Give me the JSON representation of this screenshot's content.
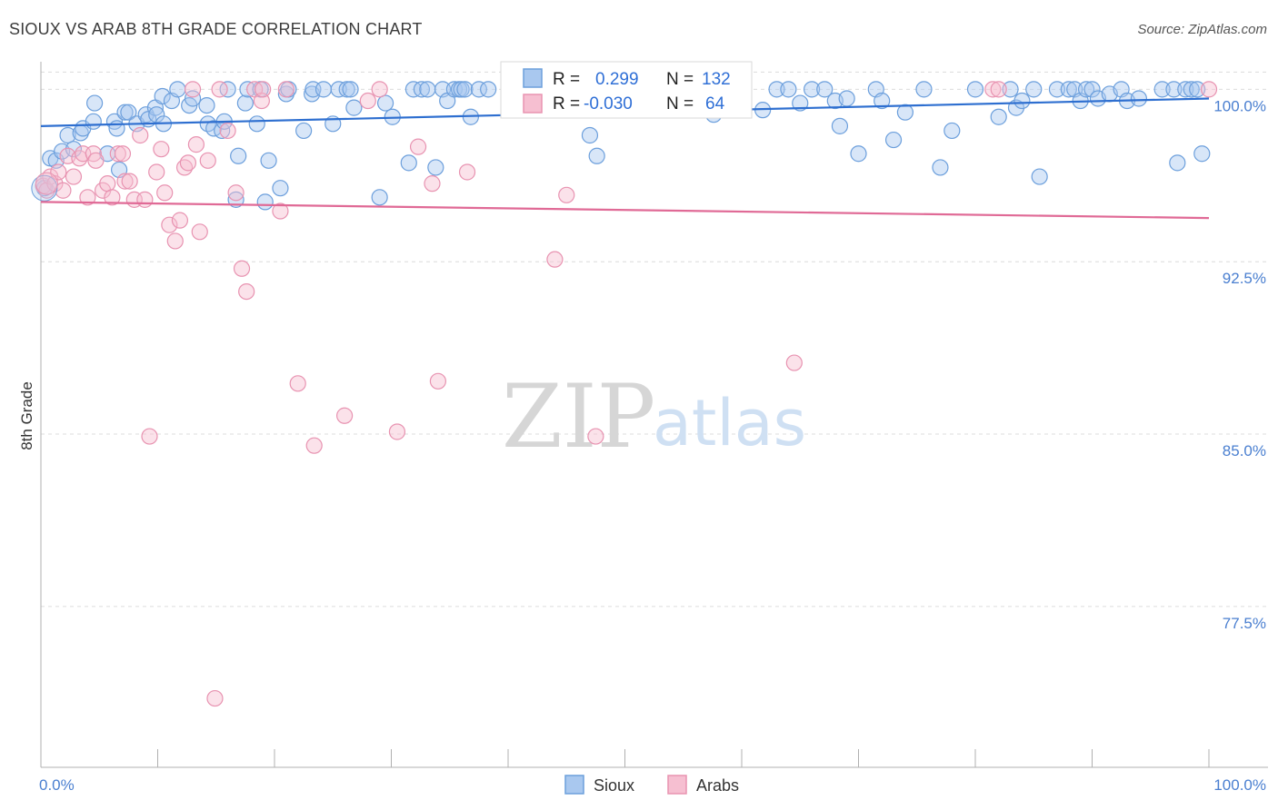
{
  "title": "SIOUX VS ARAB 8TH GRADE CORRELATION CHART",
  "source": "Source: ZipAtlas.com",
  "watermark": {
    "left": "ZIP",
    "right": "atlas"
  },
  "colors": {
    "sioux_fill": "#a9c8ef",
    "sioux_stroke": "#6c9fdc",
    "sioux_line": "#2e6fd0",
    "arab_fill": "#f6bfd1",
    "arab_stroke": "#e893b1",
    "arab_line": "#e06a96",
    "grid": "#dcdcdc",
    "axis": "#b0b0b0",
    "tick_label": "#4a7fd0"
  },
  "legend": {
    "rows": [
      {
        "r_label": "R =",
        "r_value": "0.299",
        "n_label": "N =",
        "n_value": "132",
        "series": "sioux"
      },
      {
        "r_label": "R =",
        "r_value": "-0.030",
        "n_label": "N =",
        "n_value": "64",
        "series": "arab"
      }
    ]
  },
  "bottom_legend": [
    {
      "label": "Sioux",
      "series": "sioux"
    },
    {
      "label": "Arabs",
      "series": "arab"
    }
  ],
  "chart_data": {
    "type": "scatter",
    "title": "SIOUX VS ARAB 8TH GRADE CORRELATION CHART",
    "xlabel": "",
    "ylabel": "8th Grade",
    "xlim": [
      0,
      100
    ],
    "ylim": [
      70.5,
      101.2
    ],
    "x_tick_labels": [
      {
        "value": 0,
        "label": "0.0%"
      },
      {
        "value": 100,
        "label": "100.0%"
      }
    ],
    "y_ticks": [
      {
        "value": 100,
        "label": "100.0%"
      },
      {
        "value": 92.5,
        "label": "92.5%"
      },
      {
        "value": 85,
        "label": "85.0%"
      },
      {
        "value": 77.5,
        "label": "77.5%"
      }
    ],
    "x_minor_ticks": [
      0,
      10,
      20,
      30,
      40,
      50,
      60,
      70,
      80,
      90,
      100
    ],
    "grid": true,
    "legend_position": "top-center",
    "series": [
      {
        "name": "Sioux",
        "key": "sioux",
        "trend": {
          "x": [
            0,
            100
          ],
          "y": [
            98.4,
            99.6
          ]
        },
        "points": [
          [
            0.3,
            95.7
          ],
          [
            0.8,
            97.0
          ],
          [
            1.3,
            96.9
          ],
          [
            1.8,
            97.3
          ],
          [
            2.3,
            98.0
          ],
          [
            2.8,
            97.4
          ],
          [
            3.4,
            98.1
          ],
          [
            3.6,
            98.3
          ],
          [
            4.5,
            98.6
          ],
          [
            4.6,
            99.4
          ],
          [
            5.7,
            97.2
          ],
          [
            6.3,
            98.6
          ],
          [
            6.7,
            96.5
          ],
          [
            6.5,
            98.3
          ],
          [
            7.2,
            99.0
          ],
          [
            7.5,
            99.0
          ],
          [
            8.2,
            98.5
          ],
          [
            9.0,
            98.9
          ],
          [
            9.2,
            98.7
          ],
          [
            9.8,
            99.2
          ],
          [
            9.9,
            98.9
          ],
          [
            10.4,
            99.7
          ],
          [
            10.5,
            98.5
          ],
          [
            11.2,
            99.5
          ],
          [
            11.7,
            100.0
          ],
          [
            12.7,
            99.3
          ],
          [
            13.0,
            99.6
          ],
          [
            14.2,
            99.3
          ],
          [
            14.3,
            98.5
          ],
          [
            14.8,
            98.3
          ],
          [
            15.5,
            98.2
          ],
          [
            15.7,
            98.6
          ],
          [
            16.0,
            100.0
          ],
          [
            16.7,
            95.2
          ],
          [
            16.9,
            97.1
          ],
          [
            17.5,
            99.4
          ],
          [
            17.7,
            100.0
          ],
          [
            18.5,
            98.5
          ],
          [
            18.8,
            100.0
          ],
          [
            19.2,
            95.1
          ],
          [
            19.5,
            96.9
          ],
          [
            20.5,
            95.7
          ],
          [
            21.0,
            99.8
          ],
          [
            21.2,
            100.0
          ],
          [
            22.5,
            98.2
          ],
          [
            23.2,
            99.8
          ],
          [
            23.3,
            100.0
          ],
          [
            24.2,
            100.0
          ],
          [
            25.0,
            98.5
          ],
          [
            25.5,
            100.0
          ],
          [
            26.2,
            100.0
          ],
          [
            26.5,
            100.0
          ],
          [
            26.8,
            99.2
          ],
          [
            29.0,
            95.3
          ],
          [
            29.5,
            99.4
          ],
          [
            30.1,
            98.8
          ],
          [
            31.5,
            96.8
          ],
          [
            31.9,
            100.0
          ],
          [
            32.6,
            100.0
          ],
          [
            33.1,
            100.0
          ],
          [
            33.8,
            96.6
          ],
          [
            34.4,
            100.0
          ],
          [
            34.8,
            99.5
          ],
          [
            35.4,
            100.0
          ],
          [
            35.8,
            100.0
          ],
          [
            36.0,
            100.0
          ],
          [
            36.3,
            100.0
          ],
          [
            36.8,
            98.8
          ],
          [
            37.5,
            100.0
          ],
          [
            38.3,
            100.0
          ],
          [
            40.2,
            100.0
          ],
          [
            41.0,
            99.8
          ],
          [
            41.8,
            100.0
          ],
          [
            42.6,
            100.0
          ],
          [
            43.5,
            100.0
          ],
          [
            44.0,
            99.9
          ],
          [
            45.4,
            100.0
          ],
          [
            46.0,
            99.6
          ],
          [
            46.6,
            99.3
          ],
          [
            47.0,
            98.0
          ],
          [
            47.6,
            97.1
          ],
          [
            48.5,
            100.0
          ],
          [
            50.4,
            99.9
          ],
          [
            51.5,
            100.0
          ],
          [
            52.8,
            100.0
          ],
          [
            54.0,
            100.0
          ],
          [
            55.0,
            100.0
          ],
          [
            56.0,
            100.0
          ],
          [
            57.6,
            98.9
          ],
          [
            58.0,
            100.0
          ],
          [
            59.0,
            100.0
          ],
          [
            59.3,
            100.0
          ],
          [
            61.8,
            99.1
          ],
          [
            63.0,
            100.0
          ],
          [
            64.0,
            100.0
          ],
          [
            65.0,
            99.4
          ],
          [
            66.0,
            100.0
          ],
          [
            67.1,
            100.0
          ],
          [
            68.0,
            99.5
          ],
          [
            68.4,
            98.4
          ],
          [
            69.0,
            99.6
          ],
          [
            70.0,
            97.2
          ],
          [
            71.5,
            100.0
          ],
          [
            72.0,
            99.5
          ],
          [
            73.0,
            97.8
          ],
          [
            74.0,
            99.0
          ],
          [
            75.6,
            100.0
          ],
          [
            77.0,
            96.6
          ],
          [
            78.0,
            98.2
          ],
          [
            80.0,
            100.0
          ],
          [
            82.0,
            98.8
          ],
          [
            83.0,
            100.0
          ],
          [
            83.5,
            99.2
          ],
          [
            84.0,
            99.5
          ],
          [
            85.0,
            100.0
          ],
          [
            85.5,
            96.2
          ],
          [
            87.0,
            100.0
          ],
          [
            88.0,
            100.0
          ],
          [
            88.5,
            100.0
          ],
          [
            89.0,
            99.5
          ],
          [
            89.5,
            100.0
          ],
          [
            90.0,
            100.0
          ],
          [
            90.5,
            99.6
          ],
          [
            91.5,
            99.8
          ],
          [
            92.5,
            100.0
          ],
          [
            93.0,
            99.5
          ],
          [
            94.0,
            99.6
          ],
          [
            96.0,
            100.0
          ],
          [
            97.0,
            100.0
          ],
          [
            98.0,
            100.0
          ],
          [
            98.5,
            100.0
          ],
          [
            99.0,
            100.0
          ],
          [
            97.3,
            96.8
          ],
          [
            99.4,
            97.2
          ]
        ]
      },
      {
        "name": "Arabs",
        "key": "arab",
        "trend": {
          "x": [
            0,
            100
          ],
          "y": [
            95.1,
            94.4
          ]
        },
        "points": [
          [
            0.2,
            95.8
          ],
          [
            0.5,
            95.6
          ],
          [
            0.8,
            96.2
          ],
          [
            1.2,
            95.9
          ],
          [
            1.5,
            96.4
          ],
          [
            1.9,
            95.6
          ],
          [
            2.3,
            97.1
          ],
          [
            2.8,
            96.2
          ],
          [
            3.3,
            97.0
          ],
          [
            3.6,
            97.2
          ],
          [
            4.0,
            95.3
          ],
          [
            4.5,
            97.2
          ],
          [
            4.7,
            96.9
          ],
          [
            5.3,
            95.6
          ],
          [
            5.7,
            95.9
          ],
          [
            6.1,
            95.3
          ],
          [
            6.6,
            97.2
          ],
          [
            7.0,
            97.2
          ],
          [
            7.2,
            96.0
          ],
          [
            7.6,
            96.0
          ],
          [
            8.0,
            95.2
          ],
          [
            8.5,
            98.0
          ],
          [
            8.9,
            95.2
          ],
          [
            9.3,
            84.9
          ],
          [
            9.9,
            96.4
          ],
          [
            10.3,
            97.4
          ],
          [
            10.6,
            95.5
          ],
          [
            11.0,
            94.1
          ],
          [
            11.5,
            93.4
          ],
          [
            11.9,
            94.3
          ],
          [
            12.3,
            96.6
          ],
          [
            12.6,
            96.8
          ],
          [
            13.0,
            100.0
          ],
          [
            13.3,
            97.6
          ],
          [
            13.6,
            93.8
          ],
          [
            14.3,
            96.9
          ],
          [
            14.9,
            73.5
          ],
          [
            15.3,
            100.0
          ],
          [
            16.0,
            98.2
          ],
          [
            16.7,
            95.5
          ],
          [
            17.2,
            92.2
          ],
          [
            17.6,
            91.2
          ],
          [
            18.3,
            100.0
          ],
          [
            18.9,
            99.5
          ],
          [
            19.0,
            100.0
          ],
          [
            20.5,
            94.7
          ],
          [
            21.0,
            100.0
          ],
          [
            22.0,
            87.2
          ],
          [
            23.4,
            84.5
          ],
          [
            26.0,
            85.8
          ],
          [
            28.0,
            99.5
          ],
          [
            29.0,
            100.0
          ],
          [
            30.5,
            85.1
          ],
          [
            32.3,
            97.5
          ],
          [
            33.5,
            95.9
          ],
          [
            34.0,
            87.3
          ],
          [
            36.5,
            96.4
          ],
          [
            44.0,
            92.6
          ],
          [
            45.0,
            95.4
          ],
          [
            47.5,
            84.9
          ],
          [
            64.5,
            88.1
          ],
          [
            81.5,
            100.0
          ],
          [
            82.0,
            100.0
          ],
          [
            100.0,
            100.0
          ]
        ]
      }
    ]
  }
}
